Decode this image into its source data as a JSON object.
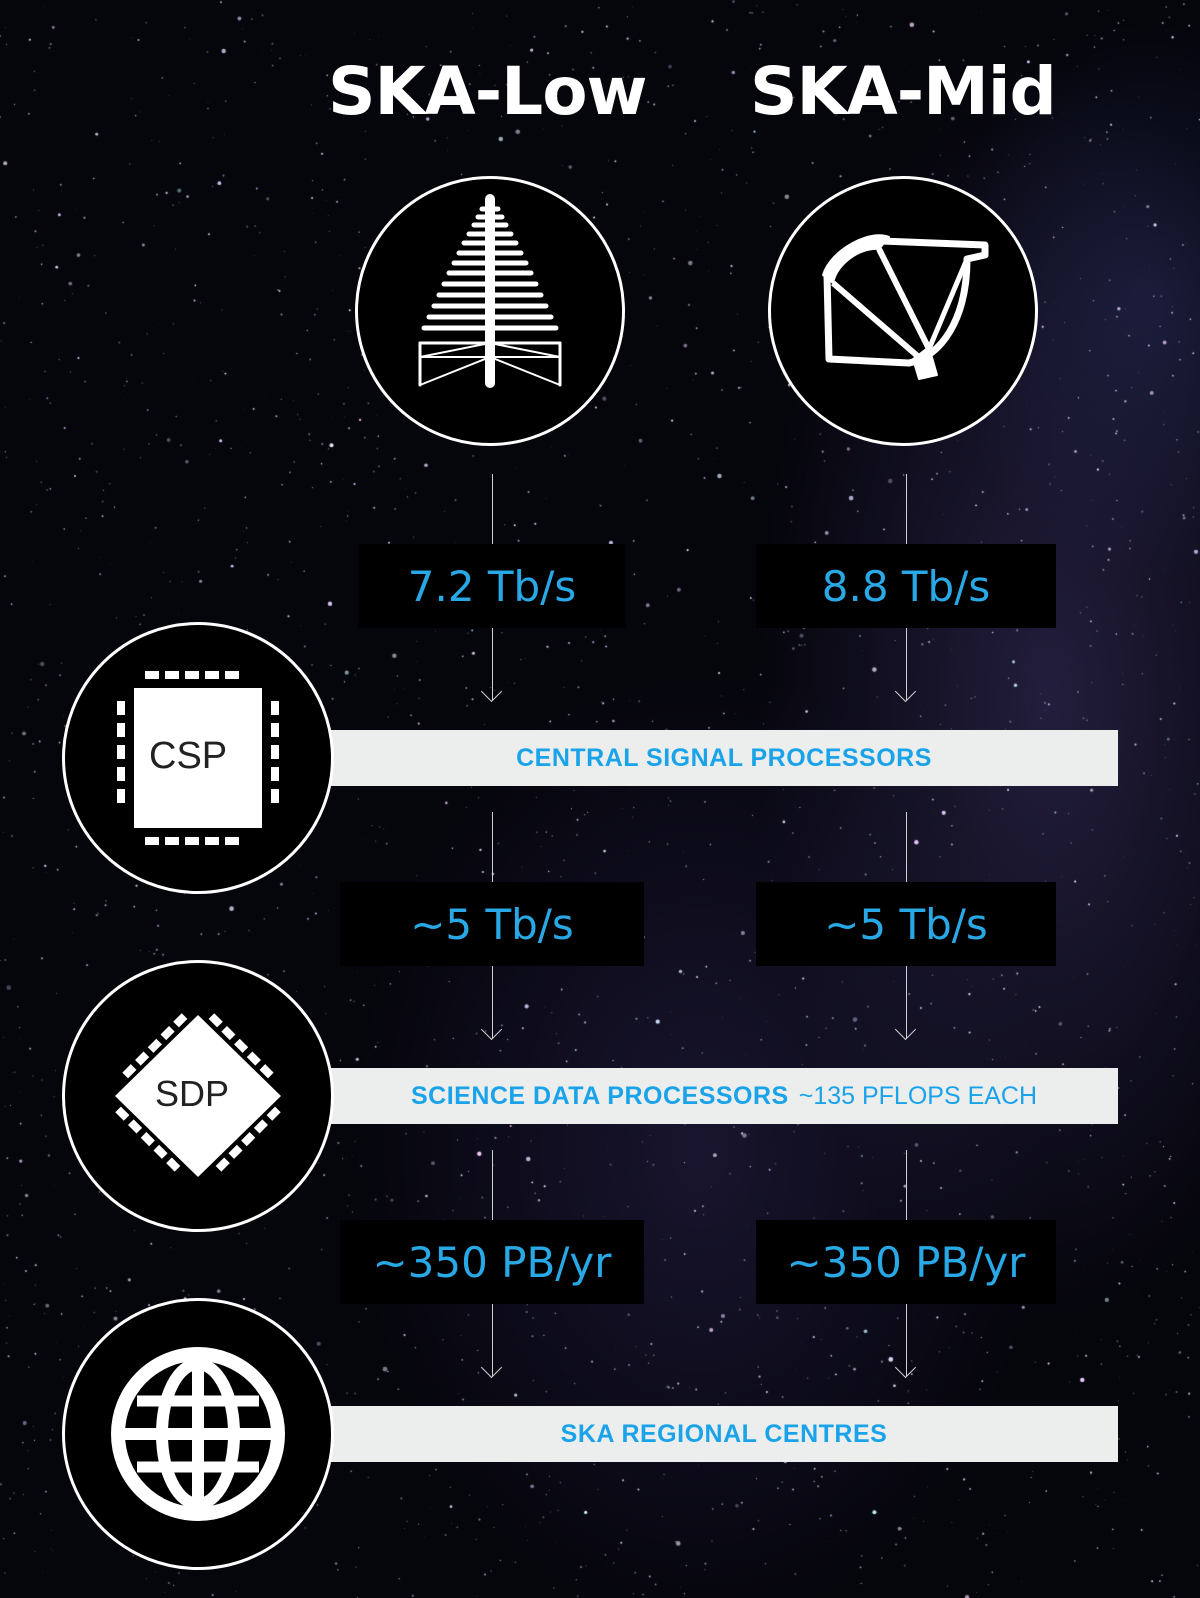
{
  "titles": {
    "low": "SKA-Low",
    "mid": "SKA-Mid"
  },
  "icons": {
    "low_antenna": "log-periodic-antenna-icon",
    "mid_dish": "radio-dish-icon",
    "csp": "processor-chip-icon",
    "sdp": "diamond-chip-icon",
    "globe": "globe-icon"
  },
  "rates": {
    "low_1": "7.2 Tb/s",
    "mid_1": "8.8 Tb/s",
    "low_2": "~5 Tb/s",
    "mid_2": "~5 Tb/s",
    "low_3": "~350 PB/yr",
    "mid_3": "~350 PB/yr"
  },
  "stages": {
    "csp": {
      "chip_label": "CSP",
      "label": "CENTRAL SIGNAL PROCESSORS"
    },
    "sdp": {
      "chip_label": "SDP",
      "label": "SCIENCE DATA PROCESSORS",
      "note": "~135 PFLOPS EACH"
    },
    "src": {
      "label": "SKA REGIONAL CENTRES"
    }
  },
  "colors": {
    "accent": "#29a8e6",
    "bar": "#eceeee",
    "background": "#05050c"
  }
}
